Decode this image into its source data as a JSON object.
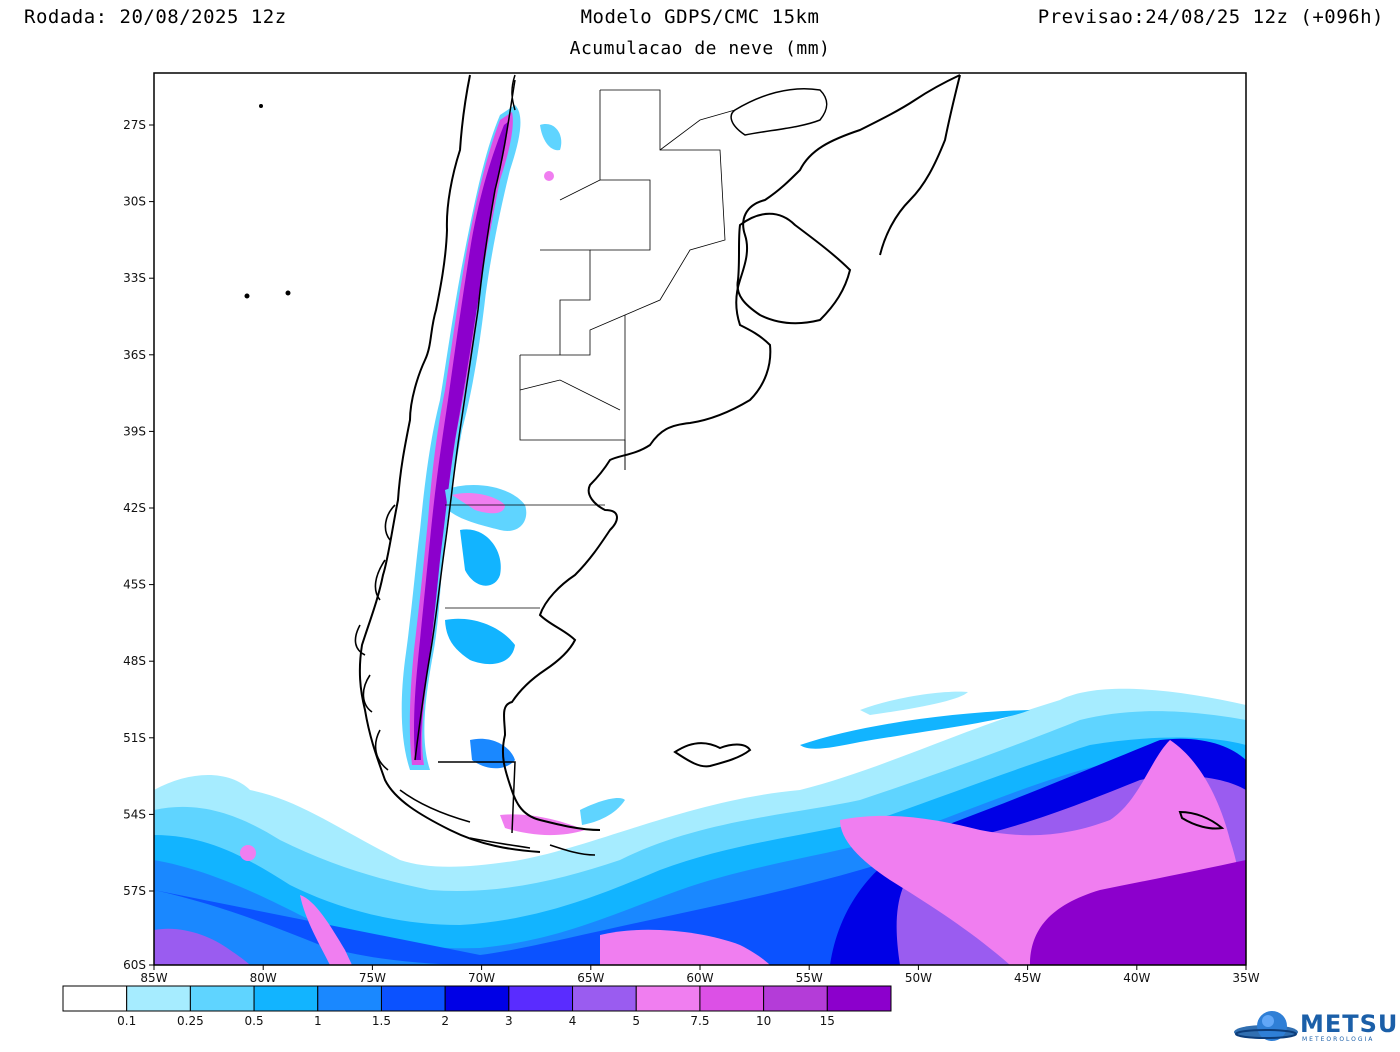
{
  "header": {
    "run": "Rodada: 20/08/2025 12z",
    "model": "Modelo GDPS/CMC 15km",
    "subtitle": "Acumulacao de neve (mm)",
    "forecast": "Previsao:24/08/25 12z (+096h)"
  },
  "axes": {
    "lon_labels": [
      "85W",
      "80W",
      "75W",
      "70W",
      "65W",
      "60W",
      "55W",
      "50W",
      "45W",
      "40W",
      "35W"
    ],
    "lat_labels": [
      "27S",
      "30S",
      "33S",
      "36S",
      "39S",
      "42S",
      "45S",
      "48S",
      "51S",
      "54S",
      "57S",
      "60S"
    ]
  },
  "colorbar": {
    "labels": [
      "0.1",
      "0.25",
      "0.5",
      "1",
      "1.5",
      "2",
      "3",
      "4",
      "5",
      "7.5",
      "10",
      "15"
    ],
    "colors": [
      "#ffffff",
      "#a6ecff",
      "#5fd4ff",
      "#12b4ff",
      "#1a88ff",
      "#0b52ff",
      "#0000e6",
      "#5a2cff",
      "#9a5cf0",
      "#f07ef0",
      "#dc50e6",
      "#b43cd8",
      "#8c00cc"
    ]
  },
  "logo": {
    "name": "METSUL",
    "tagline": "METEOROLOGIA",
    "icon": "globe-icon"
  }
}
